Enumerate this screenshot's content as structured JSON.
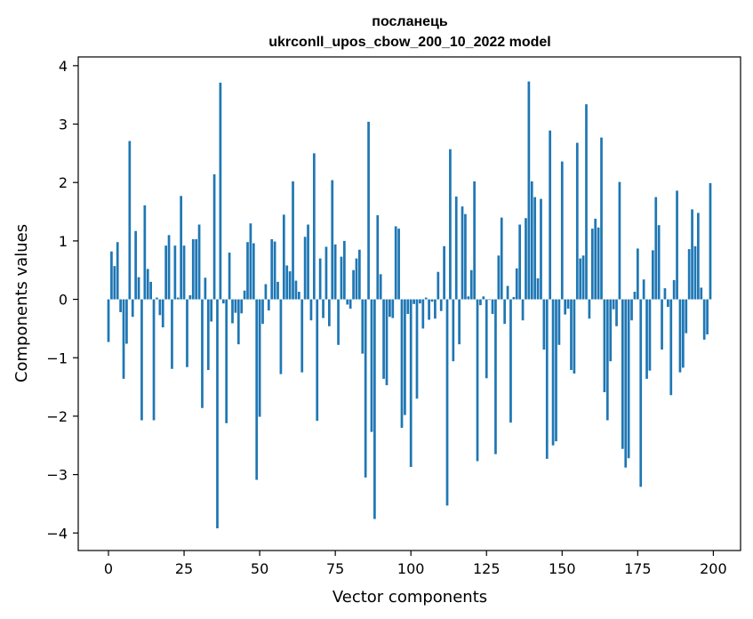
{
  "chart_data": {
    "type": "bar",
    "title": "посланець",
    "subtitle": "ukrconll_upos_cbow_200_10_2022 model",
    "xlabel": "Vector components",
    "ylabel": "Components values",
    "xlim": [
      -10,
      209
    ],
    "ylim": [
      -4.3,
      4.15
    ],
    "xticks": [
      0,
      25,
      50,
      75,
      100,
      125,
      150,
      175,
      200
    ],
    "yticks": [
      -4,
      -3,
      -2,
      -1,
      0,
      1,
      2,
      3,
      4
    ],
    "xtick_labels": [
      "0",
      "25",
      "50",
      "75",
      "100",
      "125",
      "150",
      "175",
      "200"
    ],
    "ytick_labels": [
      "−4",
      "−3",
      "−2",
      "−1",
      "0",
      "1",
      "2",
      "3",
      "4"
    ],
    "bar_color": "#1f77b4",
    "grid": false,
    "legend": "none",
    "x": [
      0,
      1,
      2,
      3,
      4,
      5,
      6,
      7,
      8,
      9,
      10,
      11,
      12,
      13,
      14,
      15,
      16,
      17,
      18,
      19,
      20,
      21,
      22,
      23,
      24,
      25,
      26,
      27,
      28,
      29,
      30,
      31,
      32,
      33,
      34,
      35,
      36,
      37,
      38,
      39,
      40,
      41,
      42,
      43,
      44,
      45,
      46,
      47,
      48,
      49,
      50,
      51,
      52,
      53,
      54,
      55,
      56,
      57,
      58,
      59,
      60,
      61,
      62,
      63,
      64,
      65,
      66,
      67,
      68,
      69,
      70,
      71,
      72,
      73,
      74,
      75,
      76,
      77,
      78,
      79,
      80,
      81,
      82,
      83,
      84,
      85,
      86,
      87,
      88,
      89,
      90,
      91,
      92,
      93,
      94,
      95,
      96,
      97,
      98,
      99,
      100,
      101,
      102,
      103,
      104,
      105,
      106,
      107,
      108,
      109,
      110,
      111,
      112,
      113,
      114,
      115,
      116,
      117,
      118,
      119,
      120,
      121,
      122,
      123,
      124,
      125,
      126,
      127,
      128,
      129,
      130,
      131,
      132,
      133,
      134,
      135,
      136,
      137,
      138,
      139,
      140,
      141,
      142,
      143,
      144,
      145,
      146,
      147,
      148,
      149,
      150,
      151,
      152,
      153,
      154,
      155,
      156,
      157,
      158,
      159,
      160,
      161,
      162,
      163,
      164,
      165,
      166,
      167,
      168,
      169,
      170,
      171,
      172,
      173,
      174,
      175,
      176,
      177,
      178,
      179,
      180,
      181,
      182,
      183,
      184,
      185,
      186,
      187,
      188,
      189,
      190,
      191,
      192,
      193,
      194,
      195,
      196,
      197,
      198,
      199
    ],
    "values": [
      -0.73,
      0.82,
      0.57,
      0.98,
      -0.22,
      -1.36,
      -0.76,
      2.71,
      -0.3,
      1.17,
      0.38,
      -2.07,
      1.61,
      0.52,
      0.3,
      -2.07,
      0.03,
      -0.27,
      -0.48,
      0.92,
      1.1,
      -1.19,
      0.92,
      0.03,
      1.77,
      0.92,
      -1.16,
      0.07,
      1.03,
      1.03,
      1.28,
      -1.86,
      0.37,
      -1.21,
      -0.38,
      2.14,
      -3.92,
      3.71,
      -0.07,
      -2.12,
      0.8,
      -0.41,
      -0.23,
      -0.77,
      -0.24,
      0.15,
      0.98,
      1.3,
      0.96,
      -3.09,
      -2.01,
      -0.42,
      0.26,
      -0.19,
      1.03,
      0.99,
      0.3,
      -1.28,
      1.45,
      0.58,
      0.48,
      2.02,
      0.32,
      0.13,
      -1.25,
      1.07,
      1.28,
      -0.36,
      2.5,
      -2.08,
      0.7,
      -0.32,
      0.9,
      -0.46,
      2.04,
      0.94,
      -0.78,
      0.73,
      1.0,
      -0.09,
      -0.16,
      0.5,
      0.7,
      0.85,
      -0.93,
      -3.05,
      3.04,
      -2.27,
      -3.76,
      1.44,
      0.43,
      -1.36,
      -1.47,
      -0.3,
      -0.32,
      1.25,
      1.21,
      -2.2,
      -1.98,
      -0.25,
      -2.87,
      -0.08,
      -1.7,
      -0.07,
      -0.5,
      0.03,
      -0.35,
      -0.04,
      -0.33,
      0.47,
      -0.2,
      0.91,
      -3.53,
      2.57,
      -1.06,
      1.76,
      -0.77,
      1.59,
      1.46,
      0.05,
      0.5,
      2.02,
      -2.77,
      -0.1,
      0.05,
      -1.35,
      -0.01,
      -0.25,
      -2.65,
      0.75,
      1.4,
      -0.42,
      0.23,
      -2.11,
      0.04,
      0.53,
      1.28,
      -0.36,
      1.39,
      3.73,
      2.02,
      1.75,
      0.36,
      1.72,
      -0.86,
      -2.73,
      2.89,
      -2.5,
      -2.43,
      -0.78,
      2.36,
      -0.26,
      -0.16,
      -1.21,
      -1.27,
      2.68,
      0.7,
      0.75,
      3.34,
      -0.33,
      1.21,
      1.38,
      1.23,
      2.77,
      -1.59,
      -2.07,
      -1.06,
      -0.17,
      -0.46,
      2.01,
      -2.56,
      -2.88,
      -2.72,
      -0.36,
      0.13,
      0.87,
      -3.21,
      0.34,
      -1.36,
      -1.22,
      0.84,
      1.75,
      1.27,
      -0.86,
      0.19,
      -0.13,
      -1.64,
      0.33,
      1.86,
      -1.25,
      -1.17,
      -0.58,
      0.86,
      1.54,
      0.91,
      1.48,
      0.2,
      -0.69,
      -0.6,
      1.99
    ]
  }
}
